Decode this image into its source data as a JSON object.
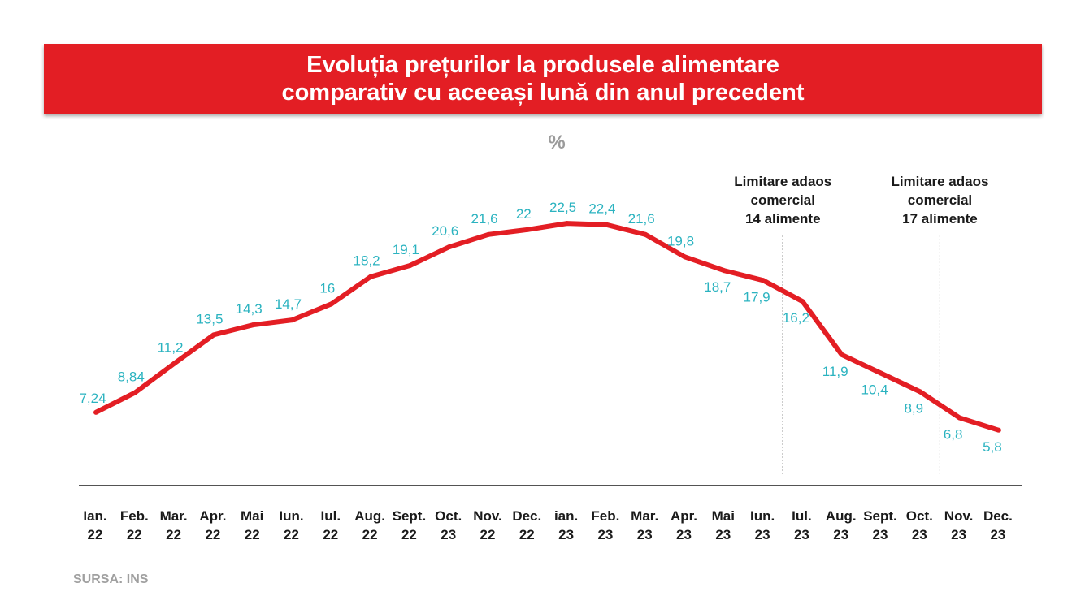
{
  "title": {
    "line1": "Evoluția prețurilor la produsele alimentare",
    "line2": "comparativ cu aceeași lună din anul precedent"
  },
  "unit": "%",
  "source": "SURSA: INS",
  "colors": {
    "banner": "#e31e24",
    "line": "#e31e24",
    "data_label": "#2bb3c0",
    "axis": "#1a1a1a",
    "source_text": "#a0a0a0"
  },
  "chart_data": {
    "type": "line",
    "title": "Evoluția prețurilor la produsele alimentare comparativ cu aceeași lună din anul precedent",
    "ylabel": "%",
    "xlabel": "",
    "ylim": [
      0,
      30
    ],
    "grid": false,
    "legend": "none",
    "categories": [
      [
        "Ian.",
        "22"
      ],
      [
        "Feb.",
        "22"
      ],
      [
        "Mar.",
        "22"
      ],
      [
        "Apr.",
        "22"
      ],
      [
        "Mai",
        "22"
      ],
      [
        "Iun.",
        "22"
      ],
      [
        "Iul.",
        "22"
      ],
      [
        "Aug.",
        "22"
      ],
      [
        "Sept.",
        "22"
      ],
      [
        "Oct.",
        "23"
      ],
      [
        "Nov.",
        "22"
      ],
      [
        "Dec.",
        "22"
      ],
      [
        "ian.",
        "23"
      ],
      [
        "Feb.",
        "23"
      ],
      [
        "Mar.",
        "23"
      ],
      [
        "Apr.",
        "23"
      ],
      [
        "Mai",
        "23"
      ],
      [
        "Iun.",
        "23"
      ],
      [
        "Iul.",
        "23"
      ],
      [
        "Aug.",
        "23"
      ],
      [
        "Sept.",
        "23"
      ],
      [
        "Oct.",
        "23"
      ],
      [
        "Nov.",
        "23"
      ],
      [
        "Dec.",
        "23"
      ]
    ],
    "values": [
      7.24,
      8.84,
      11.2,
      13.5,
      14.3,
      14.7,
      16,
      18.2,
      19.1,
      20.6,
      21.6,
      22,
      22.5,
      22.4,
      21.6,
      19.8,
      18.7,
      17.9,
      16.2,
      11.9,
      10.4,
      8.9,
      6.8,
      5.8
    ],
    "value_labels": [
      "7,24",
      "8,84",
      "11,2",
      "13,5",
      "14,3",
      "14,7",
      "16",
      "18,2",
      "19,1",
      "20,6",
      "21,6",
      "22",
      "22,5",
      "22,4",
      "21,6",
      "19,8",
      "18,7",
      "17,9",
      "16,2",
      "11,9",
      "10,4",
      "8,9",
      "6,8",
      "5,8"
    ],
    "annotations": [
      {
        "after_index": 17,
        "lines": [
          "Limitare adaos",
          "comercial",
          "14 alimente"
        ]
      },
      {
        "after_index": 21,
        "lines": [
          "Limitare adaos",
          "comercial",
          "17 alimente"
        ]
      }
    ]
  }
}
